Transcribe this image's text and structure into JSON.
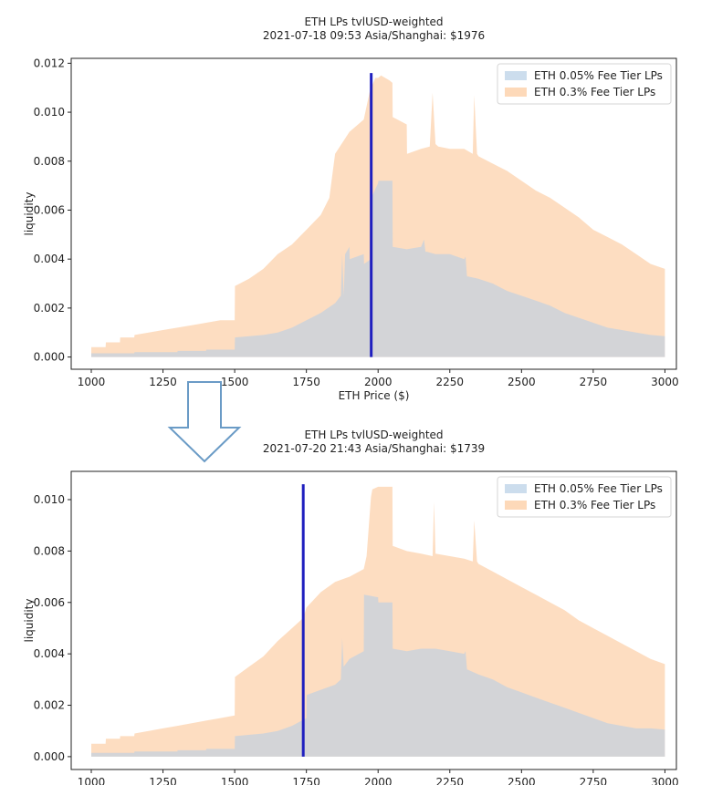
{
  "arrow": {
    "color": "#6a9bc6"
  },
  "chart_data": [
    {
      "type": "area",
      "title": "ETH LPs tvlUSD-weighted",
      "subtitle": "2021-07-18 09:53 Asia/Shanghai: $1976",
      "xlabel": "ETH Price ($)",
      "ylabel": "liquidity",
      "xlim": [
        930,
        3040
      ],
      "ylim": [
        -0.0005,
        0.0122
      ],
      "xticks": [
        1000,
        1250,
        1500,
        1750,
        2000,
        2250,
        2500,
        2750,
        3000
      ],
      "xtick_labels": [
        "1000",
        "1250",
        "1500",
        "1750",
        "2000",
        "2250",
        "2500",
        "2750",
        "3000"
      ],
      "yticks": [
        0,
        0.002,
        0.004,
        0.006,
        0.008,
        0.01,
        0.012
      ],
      "ytick_labels": [
        "0.000",
        "0.002",
        "0.004",
        "0.006",
        "0.008",
        "0.010",
        "0.012"
      ],
      "price_line": {
        "x": 1976,
        "y_top": 0.0116,
        "color": "#1f1fbf"
      },
      "legend_position": "top-right",
      "series": [
        {
          "name": "ETH 0.05% Fee Tier LPs",
          "color": "#b7cfe6",
          "x": [
            1000,
            1150,
            1151,
            1300,
            1301,
            1400,
            1401,
            1500,
            1501,
            1600,
            1650,
            1700,
            1750,
            1800,
            1850,
            1870,
            1875,
            1880,
            1885,
            1900,
            1901,
            1950,
            1951,
            1975,
            1976,
            2000,
            2001,
            2050,
            2051,
            2100,
            2150,
            2160,
            2165,
            2170,
            2200,
            2250,
            2300,
            2305,
            2310,
            2350,
            2400,
            2450,
            2500,
            2550,
            2600,
            2650,
            2700,
            2750,
            2800,
            2850,
            2900,
            2950,
            3000
          ],
          "y": [
            0.00015,
            0.00015,
            0.0002,
            0.0002,
            0.00025,
            0.00025,
            0.0003,
            0.0003,
            0.0008,
            0.0009,
            0.001,
            0.0012,
            0.0015,
            0.0018,
            0.0022,
            0.0025,
            0.0042,
            0.0025,
            0.0042,
            0.0045,
            0.004,
            0.0042,
            0.0038,
            0.004,
            0.0065,
            0.0071,
            0.0072,
            0.0072,
            0.0045,
            0.0044,
            0.0045,
            0.0048,
            0.0043,
            0.0043,
            0.0042,
            0.0042,
            0.004,
            0.0041,
            0.0033,
            0.0032,
            0.003,
            0.0027,
            0.0025,
            0.0023,
            0.0021,
            0.0018,
            0.0016,
            0.0014,
            0.0012,
            0.0011,
            0.001,
            0.0009,
            0.00085
          ]
        },
        {
          "name": "ETH 0.3% Fee Tier LPs",
          "color": "#fdd5b1",
          "x": [
            1000,
            1050,
            1051,
            1100,
            1101,
            1150,
            1151,
            1200,
            1250,
            1300,
            1350,
            1400,
            1450,
            1500,
            1501,
            1550,
            1600,
            1650,
            1700,
            1750,
            1800,
            1830,
            1850,
            1900,
            1950,
            1970,
            1976,
            1990,
            2000,
            2010,
            2040,
            2050,
            2051,
            2100,
            2101,
            2150,
            2180,
            2190,
            2200,
            2210,
            2250,
            2300,
            2330,
            2335,
            2345,
            2350,
            2400,
            2450,
            2500,
            2550,
            2600,
            2650,
            2700,
            2750,
            2800,
            2850,
            2900,
            2950,
            3000
          ],
          "y": [
            0.0004,
            0.0004,
            0.0006,
            0.0006,
            0.0008,
            0.0008,
            0.0009,
            0.001,
            0.0011,
            0.0012,
            0.0013,
            0.0014,
            0.0015,
            0.0015,
            0.0029,
            0.0032,
            0.0036,
            0.0042,
            0.0046,
            0.0052,
            0.0058,
            0.0065,
            0.0083,
            0.0092,
            0.0097,
            0.0108,
            0.011,
            0.0114,
            0.0114,
            0.0115,
            0.0113,
            0.0112,
            0.0098,
            0.0095,
            0.0083,
            0.0085,
            0.0086,
            0.0108,
            0.0087,
            0.0086,
            0.0085,
            0.0085,
            0.0083,
            0.0107,
            0.0083,
            0.0082,
            0.0079,
            0.0076,
            0.0072,
            0.0068,
            0.0065,
            0.0061,
            0.0057,
            0.0052,
            0.0049,
            0.0046,
            0.0042,
            0.0038,
            0.0036
          ]
        }
      ]
    },
    {
      "type": "area",
      "title": "ETH LPs tvlUSD-weighted",
      "subtitle": "2021-07-20 21:43 Asia/Shanghai: $1739",
      "xlabel": "",
      "ylabel": "liquidity",
      "xlim": [
        930,
        3040
      ],
      "ylim": [
        -0.0005,
        0.0111
      ],
      "xticks": [
        1000,
        1250,
        1500,
        1750,
        2000,
        2250,
        2500,
        2750,
        3000
      ],
      "xtick_labels": [
        "1000",
        "1250",
        "1500",
        "1750",
        "2000",
        "2250",
        "2500",
        "2750",
        "3000"
      ],
      "yticks": [
        0,
        0.002,
        0.004,
        0.006,
        0.008,
        0.01
      ],
      "ytick_labels": [
        "0.000",
        "0.002",
        "0.004",
        "0.006",
        "0.008",
        "0.010"
      ],
      "price_line": {
        "x": 1739,
        "y_top": 0.0106,
        "color": "#1f1fbf"
      },
      "legend_position": "top-right",
      "series": [
        {
          "name": "ETH 0.05% Fee Tier LPs",
          "color": "#b7cfe6",
          "x": [
            1000,
            1150,
            1151,
            1300,
            1301,
            1400,
            1401,
            1500,
            1501,
            1600,
            1650,
            1700,
            1750,
            1751,
            1800,
            1850,
            1870,
            1875,
            1880,
            1900,
            1950,
            1951,
            2000,
            2001,
            2050,
            2051,
            2100,
            2150,
            2200,
            2250,
            2300,
            2305,
            2310,
            2350,
            2400,
            2450,
            2500,
            2550,
            2600,
            2650,
            2700,
            2750,
            2800,
            2850,
            2900,
            2950,
            3000
          ],
          "y": [
            0.00015,
            0.00015,
            0.0002,
            0.0002,
            0.00025,
            0.00025,
            0.0003,
            0.0003,
            0.0008,
            0.0009,
            0.001,
            0.0012,
            0.0015,
            0.0024,
            0.0026,
            0.0028,
            0.003,
            0.0046,
            0.0035,
            0.0038,
            0.0041,
            0.0063,
            0.0062,
            0.006,
            0.006,
            0.0042,
            0.0041,
            0.0042,
            0.0042,
            0.0041,
            0.004,
            0.0041,
            0.0034,
            0.0032,
            0.003,
            0.0027,
            0.0025,
            0.0023,
            0.0021,
            0.0019,
            0.0017,
            0.0015,
            0.0013,
            0.0012,
            0.0011,
            0.0011,
            0.00105
          ]
        },
        {
          "name": "ETH 0.3% Fee Tier LPs",
          "color": "#fdd5b1",
          "x": [
            1000,
            1050,
            1051,
            1100,
            1101,
            1150,
            1151,
            1200,
            1250,
            1300,
            1350,
            1400,
            1450,
            1500,
            1501,
            1550,
            1600,
            1650,
            1700,
            1739,
            1750,
            1800,
            1850,
            1900,
            1950,
            1960,
            1975,
            1980,
            2000,
            2050,
            2051,
            2100,
            2150,
            2190,
            2195,
            2200,
            2250,
            2300,
            2330,
            2335,
            2345,
            2350,
            2400,
            2450,
            2500,
            2550,
            2600,
            2650,
            2700,
            2750,
            2800,
            2850,
            2900,
            2950,
            3000
          ],
          "y": [
            0.0005,
            0.0005,
            0.0007,
            0.0007,
            0.0008,
            0.0008,
            0.0009,
            0.001,
            0.0011,
            0.0012,
            0.0013,
            0.0014,
            0.0015,
            0.0016,
            0.0031,
            0.0035,
            0.0039,
            0.0045,
            0.005,
            0.0054,
            0.0058,
            0.0064,
            0.0068,
            0.007,
            0.0073,
            0.0078,
            0.0101,
            0.0104,
            0.0105,
            0.0105,
            0.0082,
            0.008,
            0.0079,
            0.0078,
            0.0099,
            0.0079,
            0.0078,
            0.0077,
            0.0076,
            0.0092,
            0.0076,
            0.0075,
            0.0072,
            0.0069,
            0.0066,
            0.0063,
            0.006,
            0.0057,
            0.0053,
            0.005,
            0.0047,
            0.0044,
            0.0041,
            0.0038,
            0.0036
          ]
        }
      ]
    }
  ]
}
